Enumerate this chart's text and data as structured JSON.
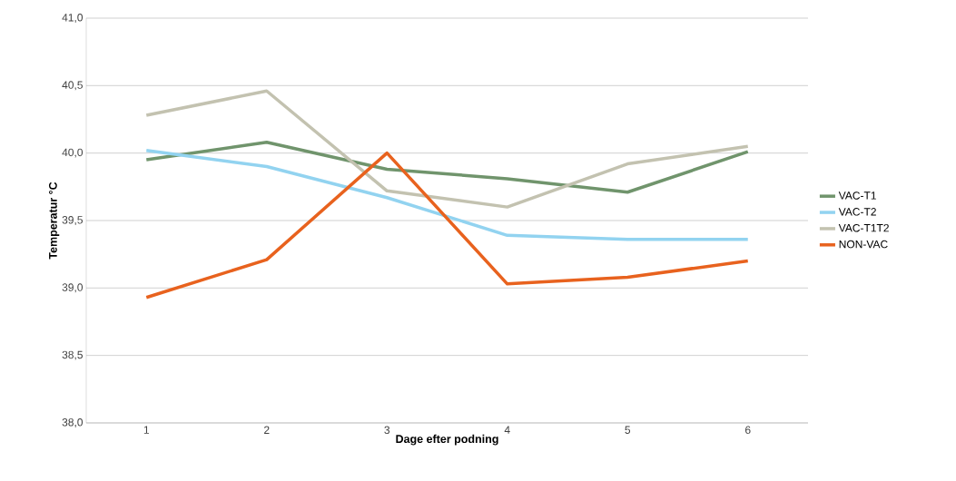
{
  "chart_data": {
    "type": "line",
    "xlabel": "Dage efter podning",
    "ylabel": "Temperatur °C",
    "categories": [
      "1",
      "2",
      "3",
      "4",
      "5",
      "6"
    ],
    "series": [
      {
        "name": "VAC-T1",
        "color": "#70946c",
        "values": [
          39.95,
          40.08,
          39.88,
          39.81,
          39.71,
          40.01
        ]
      },
      {
        "name": "VAC-T2",
        "color": "#92d3f0",
        "values": [
          40.02,
          39.9,
          39.67,
          39.39,
          39.36,
          39.36
        ]
      },
      {
        "name": "VAC-T1T2",
        "color": "#c3c2b0",
        "values": [
          40.28,
          40.46,
          39.72,
          39.6,
          39.92,
          40.05
        ]
      },
      {
        "name": "NON-VAC",
        "color": "#e8621e",
        "values": [
          38.93,
          39.21,
          40.0,
          39.03,
          39.08,
          39.2
        ]
      }
    ],
    "ylim": [
      38,
      41
    ],
    "yticks": [
      {
        "value": 38,
        "label": "38,0"
      },
      {
        "value": 38.5,
        "label": "38,5"
      },
      {
        "value": 39,
        "label": "39,0"
      },
      {
        "value": 39.5,
        "label": "39,5"
      },
      {
        "value": 40,
        "label": "40,0"
      },
      {
        "value": 40.5,
        "label": "40,5"
      },
      {
        "value": 41,
        "label": "41,0"
      }
    ],
    "grid": "y",
    "legend": "right",
    "marker": "none",
    "line_style": "solid"
  }
}
